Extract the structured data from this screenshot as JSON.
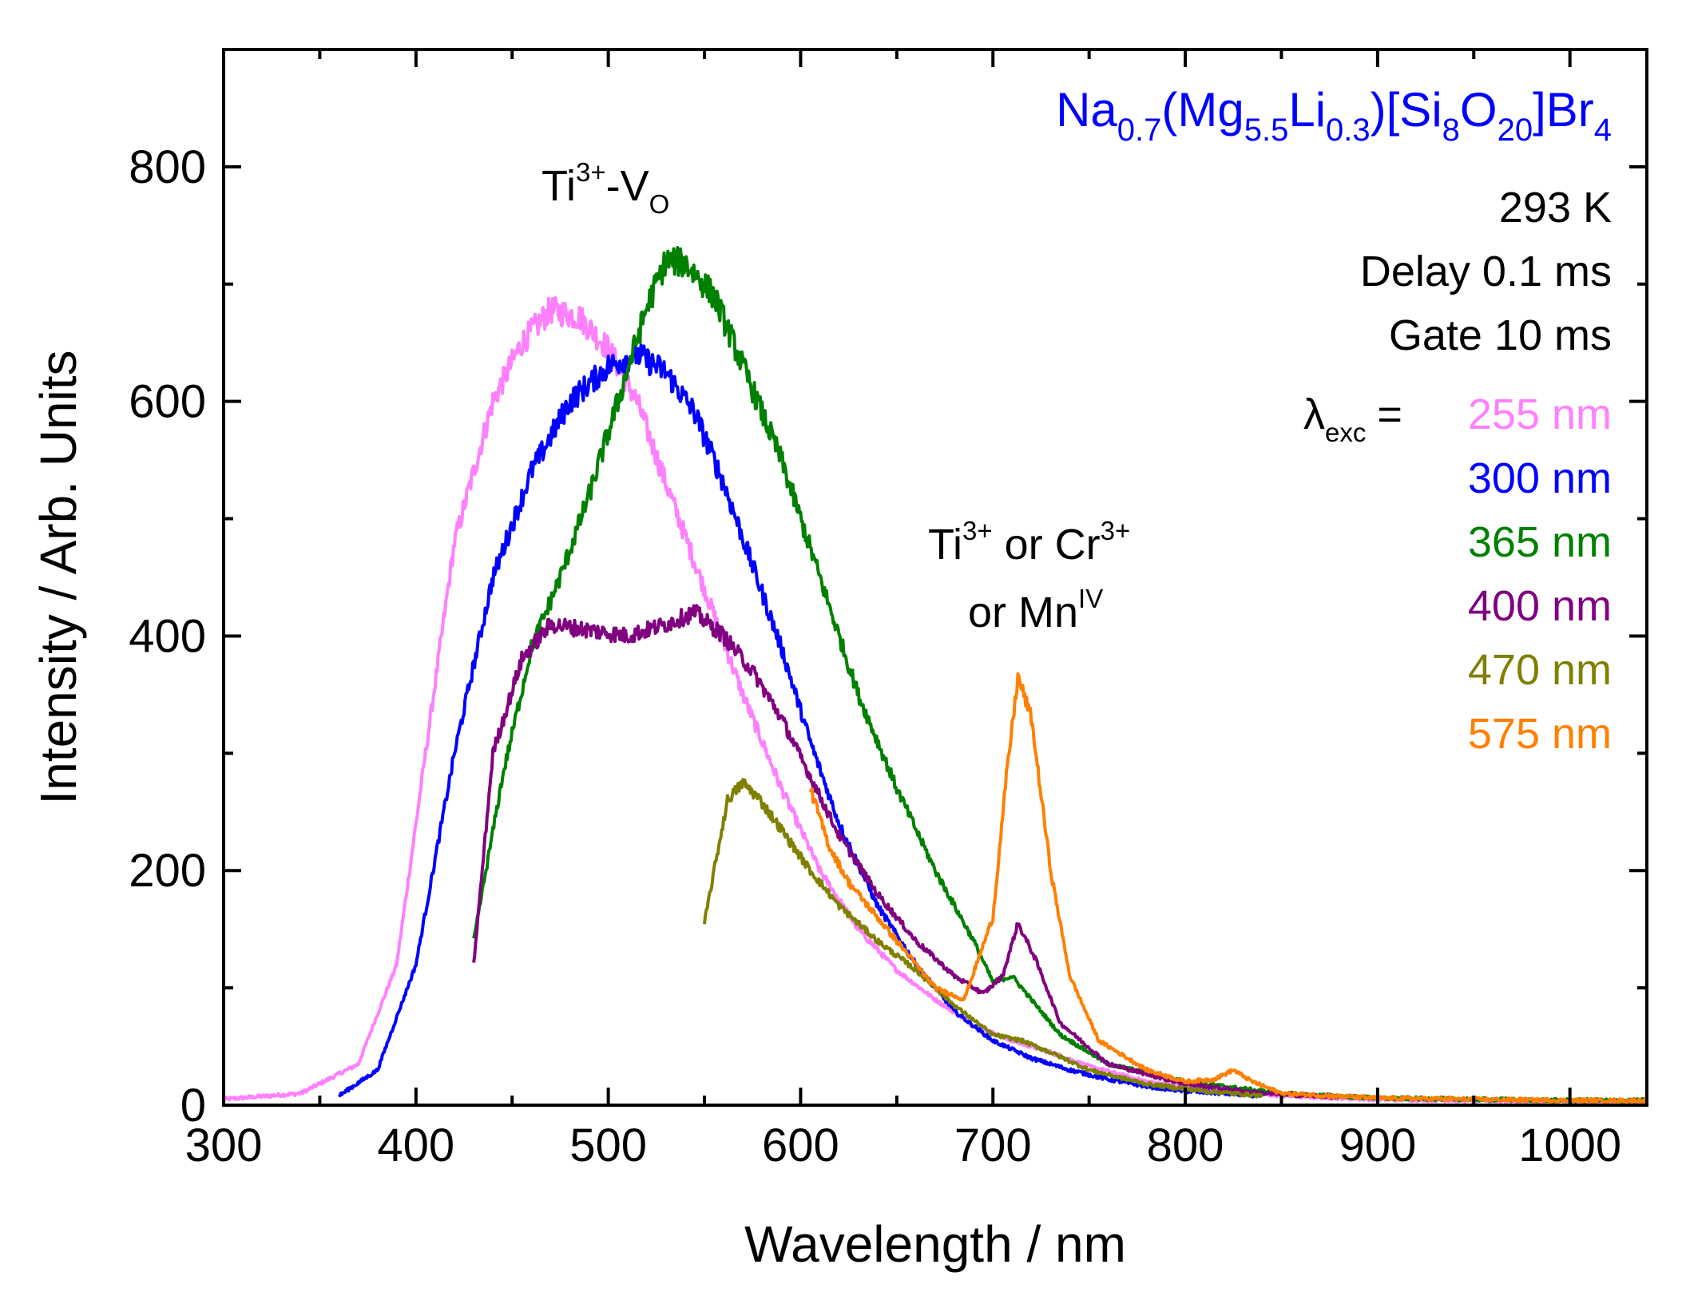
{
  "chart_data": {
    "type": "line",
    "title": "",
    "xlabel": "Wavelength / nm",
    "ylabel": "Intensity / Arb. Units",
    "xlim": [
      300,
      1040
    ],
    "ylim": [
      0,
      900
    ],
    "x_ticks": [
      300,
      400,
      500,
      600,
      700,
      800,
      900,
      1000
    ],
    "y_ticks": [
      0,
      200,
      400,
      600,
      800
    ],
    "grid": false,
    "compound": {
      "parts": [
        {
          "t": "Na"
        },
        {
          "t": "0.7",
          "sub": true
        },
        {
          "t": "(Mg"
        },
        {
          "t": "5.5",
          "sub": true
        },
        {
          "t": "Li"
        },
        {
          "t": "0.3",
          "sub": true
        },
        {
          "t": ")[Si"
        },
        {
          "t": "8",
          "sub": true
        },
        {
          "t": "O"
        },
        {
          "t": "20",
          "sub": true
        },
        {
          "t": "]Br"
        },
        {
          "t": "4",
          "sub": true
        }
      ],
      "color": "#0000ff"
    },
    "conditions": {
      "temperature": "293 K",
      "delay": "Delay 0.1 ms",
      "gate": "Gate 10 ms",
      "lambda_symbol": "λ",
      "lambda_sub": "exc",
      "equals": "="
    },
    "annotations": {
      "peak1": {
        "base": "Ti",
        "sup": "3+",
        "mid": "-V",
        "sub": "O"
      },
      "peak2_line1": {
        "base1": "Ti",
        "sup1": "3+",
        "mid": " or Cr",
        "sup2": "3+"
      },
      "peak2_line2": {
        "base": "or Mn",
        "sup": "IV"
      }
    },
    "series": [
      {
        "name": "255 nm",
        "color": "#ff80ff",
        "x_start": 300,
        "x_end": 1040,
        "points": [
          [
            300,
            5
          ],
          [
            340,
            10
          ],
          [
            370,
            35
          ],
          [
            390,
            120
          ],
          [
            405,
            300
          ],
          [
            420,
            480
          ],
          [
            440,
            600
          ],
          [
            455,
            650
          ],
          [
            470,
            678
          ],
          [
            485,
            672
          ],
          [
            500,
            645
          ],
          [
            515,
            600
          ],
          [
            530,
            530
          ],
          [
            550,
            440
          ],
          [
            570,
            350
          ],
          [
            590,
            270
          ],
          [
            610,
            200
          ],
          [
            630,
            150
          ],
          [
            650,
            115
          ],
          [
            670,
            90
          ],
          [
            690,
            68
          ],
          [
            710,
            55
          ],
          [
            730,
            45
          ],
          [
            750,
            33
          ],
          [
            780,
            20
          ],
          [
            800,
            15
          ],
          [
            850,
            8
          ],
          [
            900,
            5
          ],
          [
            1000,
            3
          ],
          [
            1040,
            3
          ]
        ]
      },
      {
        "name": "300 nm",
        "color": "#0000ff",
        "x_start": 360,
        "x_end": 840,
        "points": [
          [
            360,
            8
          ],
          [
            380,
            30
          ],
          [
            400,
            120
          ],
          [
            420,
            300
          ],
          [
            440,
            450
          ],
          [
            460,
            540
          ],
          [
            480,
            600
          ],
          [
            500,
            630
          ],
          [
            515,
            640
          ],
          [
            530,
            625
          ],
          [
            545,
            590
          ],
          [
            560,
            530
          ],
          [
            575,
            460
          ],
          [
            590,
            390
          ],
          [
            605,
            310
          ],
          [
            620,
            240
          ],
          [
            640,
            170
          ],
          [
            660,
            120
          ],
          [
            680,
            80
          ],
          [
            700,
            55
          ],
          [
            720,
            40
          ],
          [
            740,
            30
          ],
          [
            760,
            22
          ],
          [
            780,
            16
          ],
          [
            800,
            12
          ],
          [
            840,
            8
          ]
        ]
      },
      {
        "name": "365 nm",
        "color": "#008000",
        "x_start": 430,
        "x_end": 1040,
        "points": [
          [
            430,
            140
          ],
          [
            445,
            280
          ],
          [
            460,
            390
          ],
          [
            475,
            450
          ],
          [
            490,
            520
          ],
          [
            505,
            600
          ],
          [
            520,
            680
          ],
          [
            530,
            720
          ],
          [
            540,
            718
          ],
          [
            555,
            690
          ],
          [
            570,
            630
          ],
          [
            590,
            550
          ],
          [
            610,
            450
          ],
          [
            630,
            350
          ],
          [
            650,
            270
          ],
          [
            670,
            200
          ],
          [
            690,
            140
          ],
          [
            700,
            105
          ],
          [
            710,
            110
          ],
          [
            720,
            90
          ],
          [
            735,
            60
          ],
          [
            760,
            35
          ],
          [
            800,
            20
          ],
          [
            850,
            10
          ],
          [
            900,
            6
          ],
          [
            1000,
            4
          ],
          [
            1040,
            4
          ]
        ]
      },
      {
        "name": "400 nm",
        "color": "#800080",
        "x_start": 430,
        "x_end": 880,
        "points": [
          [
            430,
            120
          ],
          [
            440,
            300
          ],
          [
            455,
            380
          ],
          [
            470,
            410
          ],
          [
            490,
            405
          ],
          [
            510,
            400
          ],
          [
            530,
            410
          ],
          [
            545,
            420
          ],
          [
            560,
            400
          ],
          [
            575,
            370
          ],
          [
            590,
            330
          ],
          [
            605,
            280
          ],
          [
            620,
            230
          ],
          [
            640,
            180
          ],
          [
            660,
            140
          ],
          [
            680,
            110
          ],
          [
            695,
            95
          ],
          [
            705,
            110
          ],
          [
            713,
            155
          ],
          [
            722,
            125
          ],
          [
            735,
            70
          ],
          [
            760,
            35
          ],
          [
            800,
            18
          ],
          [
            840,
            10
          ],
          [
            880,
            7
          ]
        ]
      },
      {
        "name": "470 nm",
        "color": "#808000",
        "x_start": 550,
        "x_end": 840,
        "points": [
          [
            550,
            155
          ],
          [
            555,
            200
          ],
          [
            562,
            260
          ],
          [
            570,
            275
          ],
          [
            578,
            262
          ],
          [
            590,
            235
          ],
          [
            605,
            200
          ],
          [
            620,
            170
          ],
          [
            640,
            140
          ],
          [
            660,
            115
          ],
          [
            680,
            85
          ],
          [
            700,
            60
          ],
          [
            715,
            55
          ],
          [
            730,
            45
          ],
          [
            750,
            30
          ],
          [
            780,
            18
          ],
          [
            810,
            12
          ],
          [
            840,
            8
          ]
        ]
      },
      {
        "name": "575 nm",
        "color": "#ff8000",
        "x_start": 605,
        "x_end": 1040,
        "points": [
          [
            605,
            270
          ],
          [
            615,
            220
          ],
          [
            625,
            190
          ],
          [
            640,
            160
          ],
          [
            655,
            130
          ],
          [
            670,
            100
          ],
          [
            685,
            90
          ],
          [
            700,
            160
          ],
          [
            707,
            280
          ],
          [
            713,
            365
          ],
          [
            720,
            330
          ],
          [
            730,
            200
          ],
          [
            740,
            110
          ],
          [
            755,
            55
          ],
          [
            780,
            30
          ],
          [
            800,
            20
          ],
          [
            815,
            22
          ],
          [
            825,
            30
          ],
          [
            835,
            20
          ],
          [
            850,
            10
          ],
          [
            900,
            6
          ],
          [
            1000,
            4
          ],
          [
            1040,
            4
          ]
        ]
      }
    ]
  }
}
